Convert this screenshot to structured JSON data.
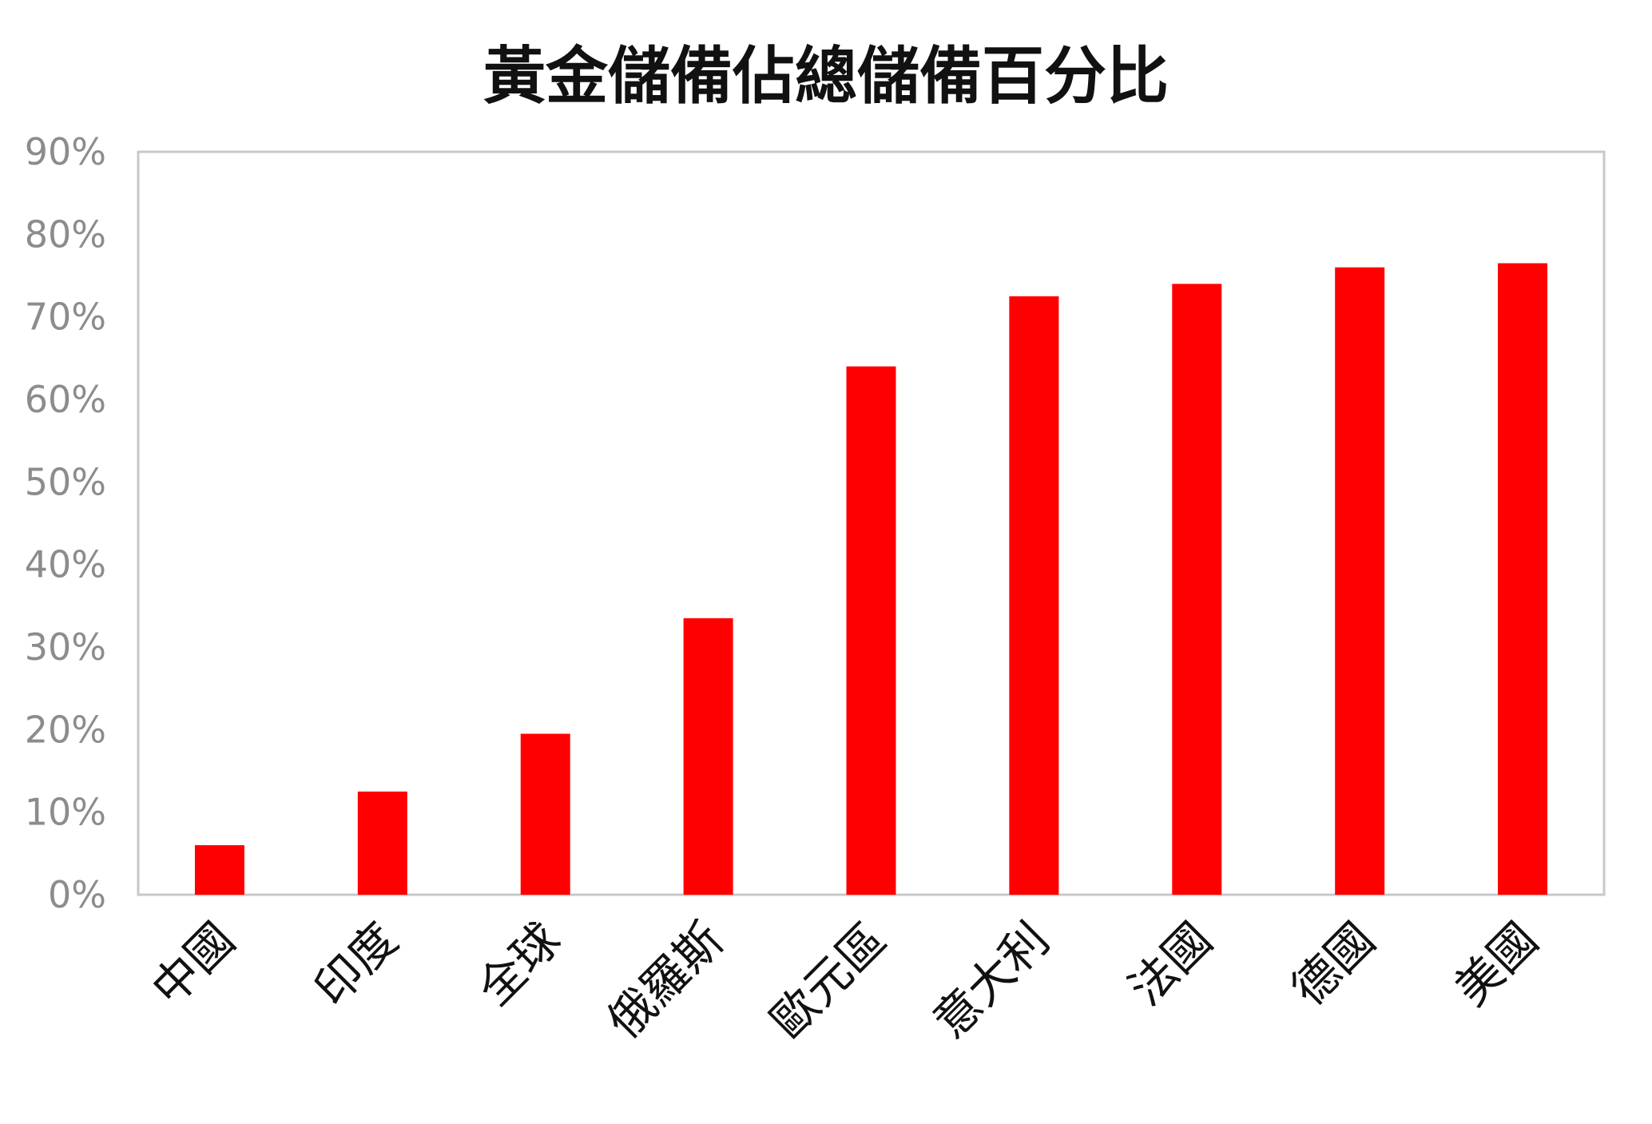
{
  "chart_data": {
    "type": "bar",
    "title": "黃金儲備佔總儲備百分比",
    "xlabel": "",
    "ylabel": "",
    "ylim": [
      0,
      90
    ],
    "y_ticks": [
      "0%",
      "10%",
      "20%",
      "30%",
      "40%",
      "50%",
      "60%",
      "70%",
      "80%",
      "90%"
    ],
    "categories": [
      "中國",
      "印度",
      "全球",
      "俄羅斯",
      "歐元區",
      "意大利",
      "法國",
      "德國",
      "美國"
    ],
    "values": [
      6,
      12.5,
      19.5,
      33.5,
      64,
      72.5,
      74,
      76,
      76.5
    ],
    "bar_color": "#ff0000",
    "grid": false,
    "legend": "none"
  }
}
